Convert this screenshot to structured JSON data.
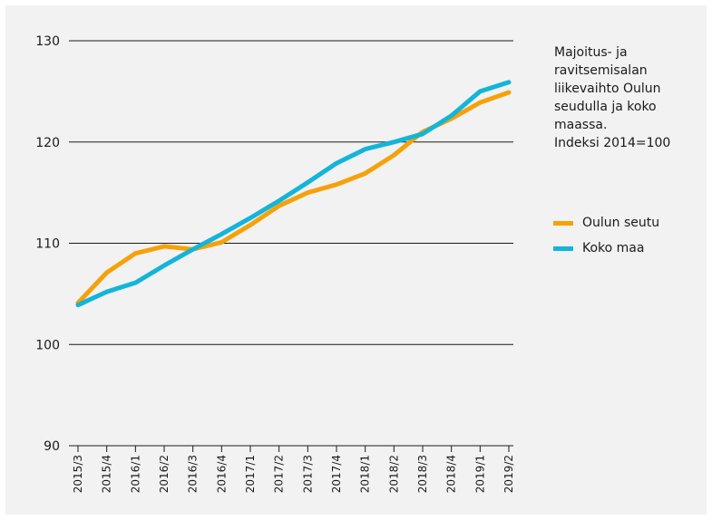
{
  "chart_data": {
    "type": "line",
    "title": "Majoitus- ja ravitsemisalan liikevaihto Oulun seudulla ja koko maassa. Indeksi 2014=100",
    "title_lines": [
      "Majoitus- ja",
      "ravitsemisalan",
      "liikevaihto Oulun",
      "seudulla ja koko",
      "maassa.",
      "Indeksi 2014=100"
    ],
    "categories": [
      "2015/3",
      "2015/4",
      "2016/1",
      "2016/2",
      "2016/3",
      "2016/4",
      "2017/1",
      "2017/2",
      "2017/3",
      "2017/4",
      "2018/1",
      "2018/2",
      "2018/3",
      "2018/4",
      "2019/1",
      "2019/2"
    ],
    "ylim": [
      90,
      130
    ],
    "yticks": [
      90,
      100,
      110,
      120,
      130
    ],
    "grid": true,
    "legend_position": "right",
    "series": [
      {
        "name": "Oulun seutu",
        "color": "#f5a20a",
        "values": [
          104.1,
          107.1,
          109.0,
          109.7,
          109.4,
          110.1,
          111.8,
          113.7,
          115.0,
          115.8,
          116.9,
          118.7,
          121.0,
          122.3,
          123.9,
          124.9
        ]
      },
      {
        "name": "Koko maa",
        "color": "#13b5d9",
        "values": [
          103.9,
          105.2,
          106.1,
          107.8,
          109.4,
          110.9,
          112.5,
          114.2,
          116.0,
          117.9,
          119.3,
          120.0,
          120.8,
          122.6,
          125.0,
          125.9
        ]
      }
    ]
  }
}
